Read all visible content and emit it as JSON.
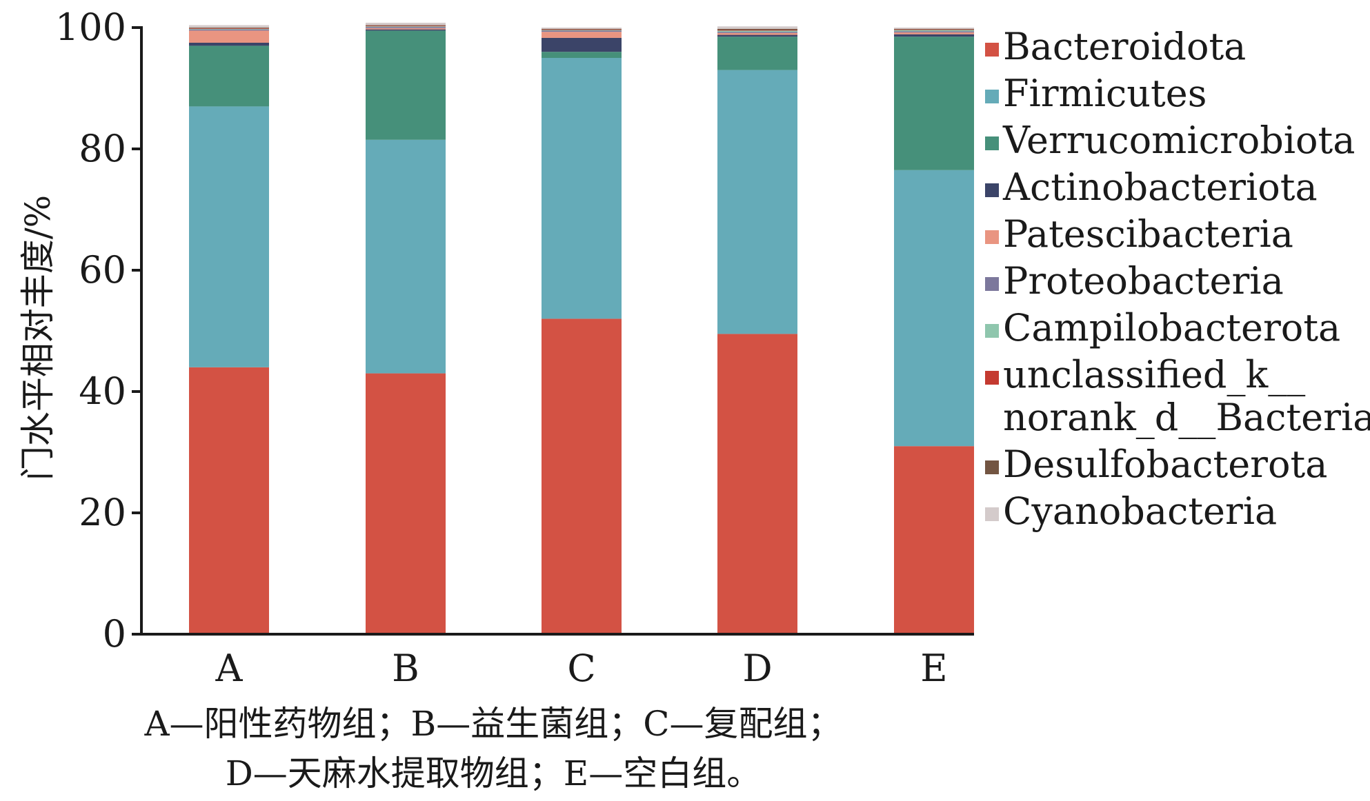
{
  "chart_data": {
    "type": "bar",
    "stacked": true,
    "title": "",
    "xlabel": "",
    "ylabel": "门水平相对丰度/%",
    "ylim": [
      0,
      100
    ],
    "yticks": [
      "0",
      "20",
      "40",
      "60",
      "80",
      "100"
    ],
    "categories": [
      "A",
      "B",
      "C",
      "D",
      "E"
    ],
    "legend_position": "right",
    "series": [
      {
        "name": "Bacteroidota",
        "color": "#d35244",
        "values": [
          44.0,
          43.0,
          52.0,
          49.5,
          31.0
        ]
      },
      {
        "name": "Firmicutes",
        "color": "#65abb8",
        "values": [
          43.0,
          38.5,
          43.0,
          43.5,
          45.5
        ]
      },
      {
        "name": "Verrucomicrobiota",
        "color": "#46907a",
        "values": [
          10.0,
          18.0,
          1.0,
          5.5,
          22.0
        ]
      },
      {
        "name": "Actinobacteriota",
        "color": "#3b4468",
        "values": [
          0.5,
          0.2,
          2.3,
          0.3,
          0.4
        ]
      },
      {
        "name": "Patescibacteria",
        "color": "#e99581",
        "values": [
          2.0,
          0.2,
          1.0,
          0.3,
          0.3
        ]
      },
      {
        "name": "Proteobacteria",
        "color": "#7c789c",
        "values": [
          0.2,
          0.2,
          0.2,
          0.2,
          0.2
        ]
      },
      {
        "name": "Campilobacterota",
        "color": "#8fc6ad",
        "values": [
          0.1,
          0.1,
          0.1,
          0.2,
          0.2
        ]
      },
      {
        "name": "unclassified_k__\nnorank_d__Bacteria",
        "color": "#c43a30",
        "values": [
          0.1,
          0.1,
          0.1,
          0.1,
          0.1
        ]
      },
      {
        "name": "Desulfobacterota",
        "color": "#735542",
        "values": [
          0.1,
          0.1,
          0.1,
          0.2,
          0.1
        ]
      },
      {
        "name": "Cyanobacteria",
        "color": "#d4cbcb",
        "values": [
          0.4,
          0.4,
          0.2,
          0.4,
          0.2
        ]
      }
    ]
  },
  "caption": {
    "line1": "A—阳性药物组；B—益生菌组；C—复配组；",
    "line2": "D—天麻水提取物组；E—空白组。"
  }
}
